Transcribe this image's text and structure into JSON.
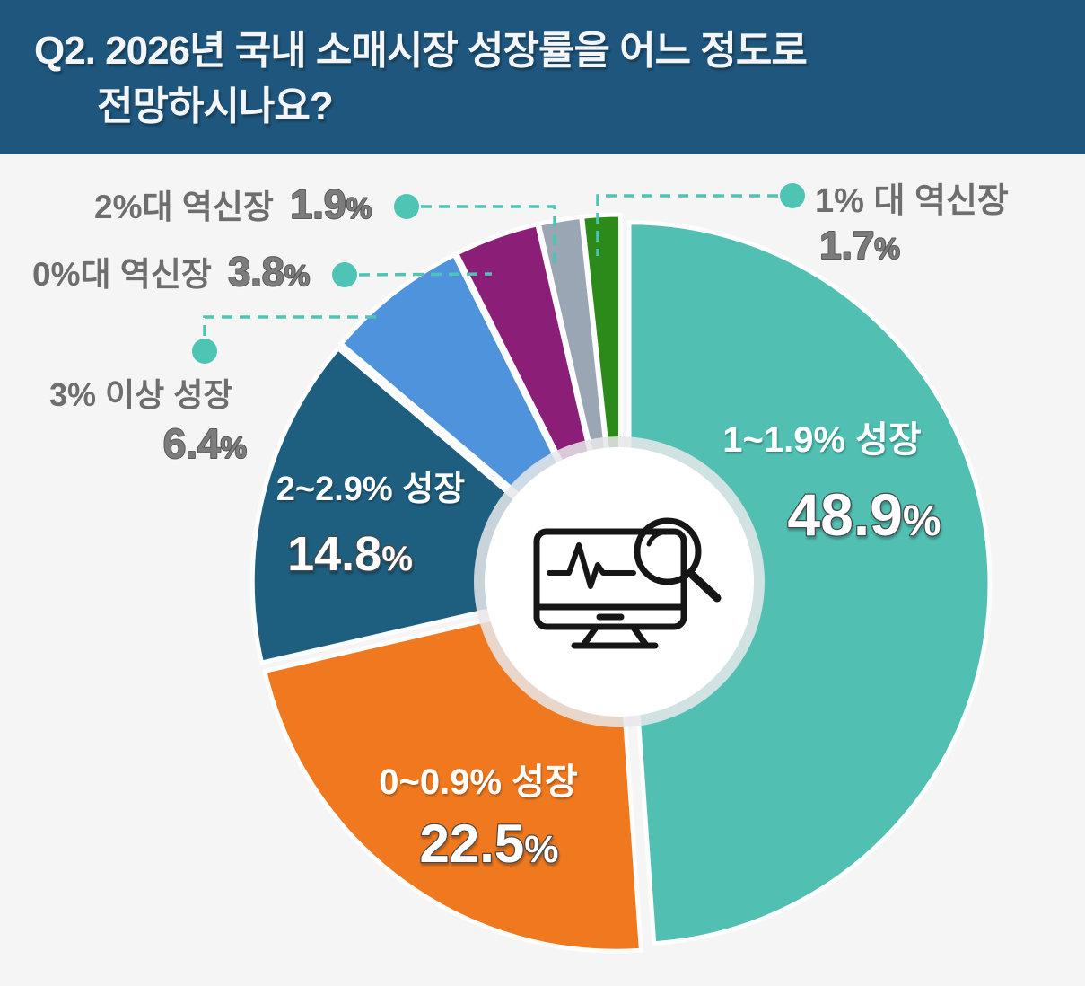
{
  "header": {
    "title_line1": "Q2. 2026년 국내 소매시장 성장률을 어느 정도로",
    "title_line2": "전망하시나요?",
    "bg_color": "#1e567d",
    "text_color": "#f3f5f6"
  },
  "chart_data": {
    "type": "pie",
    "title": "2026년 국내 소매시장 성장률 전망",
    "unit": "%",
    "start_angle_deg": 0,
    "direction": "clockwise",
    "total": 100,
    "slices": [
      {
        "id": "growth-1-1.9",
        "label": "1~1.9% 성장",
        "value": 48.9,
        "display": "48.9%",
        "color": "#51c0b3",
        "label_placement": "inside"
      },
      {
        "id": "growth-0-0.9",
        "label": "0~0.9% 성장",
        "value": 22.5,
        "display": "22.5%",
        "color": "#f0791f",
        "label_placement": "inside"
      },
      {
        "id": "growth-2-2.9",
        "label": "2~2.9% 성장",
        "value": 14.8,
        "display": "14.8%",
        "color": "#1e5f80",
        "label_placement": "inside"
      },
      {
        "id": "growth-3plus",
        "label": "3% 이상 성장",
        "value": 6.4,
        "display": "6.4%",
        "color": "#4e93db",
        "label_placement": "outside"
      },
      {
        "id": "decline-0",
        "label": "0%대 역신장",
        "value": 3.8,
        "display": "3.8%",
        "color": "#8b1f77",
        "label_placement": "outside"
      },
      {
        "id": "decline-2",
        "label": "2%대 역신장",
        "value": 1.9,
        "display": "1.9%",
        "color": "#9aa6b3",
        "label_placement": "outside"
      },
      {
        "id": "decline-1",
        "label": "1% 대 역신장",
        "value": 1.7,
        "display": "1.7%",
        "color": "#2c8a1a",
        "label_placement": "outside"
      }
    ],
    "callout_color": "#4ec4b4",
    "outside_label_color": "#6e6e6e",
    "outside_value_color": "#7c7c7c",
    "legend_position": "none",
    "grid": false
  },
  "center_icon": "monitor-pulse-magnifier"
}
